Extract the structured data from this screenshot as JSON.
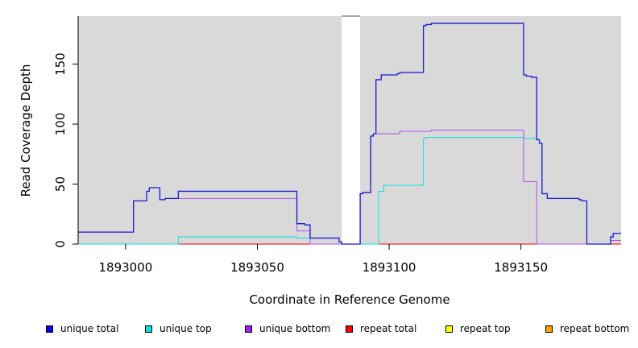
{
  "chart_data": {
    "type": "line",
    "xlabel": "Coordinate in Reference Genome",
    "ylabel": "Read Coverage Depth",
    "xlim": [
      1892982,
      1893188
    ],
    "ylim": [
      0,
      190
    ],
    "x_ticks": [
      1893000,
      1893050,
      1893100,
      1893150
    ],
    "y_ticks": [
      0,
      50,
      100,
      150
    ],
    "background_color": "#d9d9d9",
    "gap_region": [
      1893082,
      1893089
    ],
    "series": [
      {
        "name": "unique total",
        "color": "#1a1ad6",
        "points": [
          [
            1892982,
            10
          ],
          [
            1893003,
            10
          ],
          [
            1893003,
            36
          ],
          [
            1893008,
            36
          ],
          [
            1893008,
            44
          ],
          [
            1893009,
            44
          ],
          [
            1893009,
            47
          ],
          [
            1893013,
            47
          ],
          [
            1893013,
            37
          ],
          [
            1893015,
            37
          ],
          [
            1893015,
            38
          ],
          [
            1893020,
            38
          ],
          [
            1893020,
            44
          ],
          [
            1893065,
            44
          ],
          [
            1893065,
            17
          ],
          [
            1893068,
            17
          ],
          [
            1893068,
            16
          ],
          [
            1893070,
            16
          ],
          [
            1893070,
            5
          ],
          [
            1893081,
            5
          ],
          [
            1893081,
            2
          ],
          [
            1893082,
            2
          ],
          [
            1893082,
            0
          ],
          [
            1893089,
            0
          ],
          [
            1893089,
            42
          ],
          [
            1893090,
            42
          ],
          [
            1893090,
            43
          ],
          [
            1893093,
            43
          ],
          [
            1893093,
            90
          ],
          [
            1893094,
            90
          ],
          [
            1893094,
            92
          ],
          [
            1893095,
            92
          ],
          [
            1893095,
            137
          ],
          [
            1893097,
            137
          ],
          [
            1893097,
            141
          ],
          [
            1893103,
            141
          ],
          [
            1893103,
            142
          ],
          [
            1893104,
            142
          ],
          [
            1893104,
            143
          ],
          [
            1893113,
            143
          ],
          [
            1893113,
            182
          ],
          [
            1893114,
            182
          ],
          [
            1893114,
            183
          ],
          [
            1893116,
            183
          ],
          [
            1893116,
            184
          ],
          [
            1893151,
            184
          ],
          [
            1893151,
            141
          ],
          [
            1893152,
            141
          ],
          [
            1893152,
            140
          ],
          [
            1893154,
            140
          ],
          [
            1893154,
            139
          ],
          [
            1893156,
            139
          ],
          [
            1893156,
            87
          ],
          [
            1893157,
            87
          ],
          [
            1893157,
            84
          ],
          [
            1893158,
            84
          ],
          [
            1893158,
            42
          ],
          [
            1893160,
            42
          ],
          [
            1893160,
            38
          ],
          [
            1893172,
            38
          ],
          [
            1893172,
            37
          ],
          [
            1893173,
            37
          ],
          [
            1893173,
            36
          ],
          [
            1893175,
            36
          ],
          [
            1893175,
            0
          ],
          [
            1893184,
            0
          ],
          [
            1893184,
            6
          ],
          [
            1893185,
            6
          ],
          [
            1893185,
            9
          ],
          [
            1893188,
            9
          ]
        ]
      },
      {
        "name": "unique top",
        "color": "#00e5e5",
        "points": [
          [
            1892982,
            0
          ],
          [
            1893020,
            0
          ],
          [
            1893020,
            6
          ],
          [
            1893065,
            6
          ],
          [
            1893065,
            5
          ],
          [
            1893081,
            5
          ],
          [
            1893081,
            0
          ],
          [
            1893096,
            0
          ],
          [
            1893096,
            44
          ],
          [
            1893098,
            44
          ],
          [
            1893098,
            49
          ],
          [
            1893113,
            49
          ],
          [
            1893113,
            88
          ],
          [
            1893114,
            88
          ],
          [
            1893114,
            89
          ],
          [
            1893151,
            89
          ],
          [
            1893151,
            88
          ],
          [
            1893156,
            88
          ],
          [
            1893156,
            87
          ],
          [
            1893157,
            87
          ],
          [
            1893157,
            84
          ],
          [
            1893158,
            84
          ],
          [
            1893158,
            42
          ],
          [
            1893160,
            42
          ],
          [
            1893160,
            38
          ],
          [
            1893172,
            38
          ],
          [
            1893172,
            37
          ],
          [
            1893173,
            37
          ],
          [
            1893173,
            36
          ],
          [
            1893175,
            36
          ],
          [
            1893175,
            0
          ],
          [
            1893184,
            0
          ],
          [
            1893184,
            3
          ],
          [
            1893188,
            3
          ]
        ]
      },
      {
        "name": "unique bottom",
        "color": "#b050f0",
        "points": [
          [
            1892982,
            10
          ],
          [
            1893003,
            10
          ],
          [
            1893003,
            36
          ],
          [
            1893008,
            36
          ],
          [
            1893008,
            44
          ],
          [
            1893009,
            44
          ],
          [
            1893009,
            47
          ],
          [
            1893013,
            47
          ],
          [
            1893013,
            37
          ],
          [
            1893015,
            37
          ],
          [
            1893015,
            38
          ],
          [
            1893065,
            38
          ],
          [
            1893065,
            11
          ],
          [
            1893070,
            11
          ],
          [
            1893070,
            0
          ],
          [
            1893089,
            0
          ],
          [
            1893089,
            42
          ],
          [
            1893090,
            42
          ],
          [
            1893090,
            43
          ],
          [
            1893093,
            43
          ],
          [
            1893093,
            90
          ],
          [
            1893094,
            90
          ],
          [
            1893094,
            92
          ],
          [
            1893104,
            92
          ],
          [
            1893104,
            94
          ],
          [
            1893116,
            94
          ],
          [
            1893116,
            95
          ],
          [
            1893151,
            95
          ],
          [
            1893151,
            52
          ],
          [
            1893156,
            52
          ],
          [
            1893156,
            0
          ],
          [
            1893184,
            0
          ],
          [
            1893184,
            3
          ],
          [
            1893188,
            3
          ]
        ]
      },
      {
        "name": "repeat total",
        "color": "#ff0000",
        "points": [
          [
            1892982,
            0
          ],
          [
            1893188,
            0
          ]
        ]
      },
      {
        "name": "repeat top",
        "color": "#ffff00",
        "points": [
          [
            1892982,
            0
          ],
          [
            1893188,
            0
          ]
        ]
      },
      {
        "name": "repeat bottom",
        "color": "#ffa500",
        "points": [
          [
            1892982,
            0
          ],
          [
            1893082,
            0
          ],
          [
            1893089,
            0
          ],
          [
            1893188,
            0
          ]
        ]
      }
    ]
  },
  "legend": {
    "items": [
      {
        "label": "unique total",
        "color": "#0000ff"
      },
      {
        "label": "unique top",
        "color": "#00e5e5"
      },
      {
        "label": "unique bottom",
        "color": "#a020f0"
      },
      {
        "label": "repeat total",
        "color": "#ff0000"
      },
      {
        "label": "repeat top",
        "color": "#ffff00"
      },
      {
        "label": "repeat bottom",
        "color": "#ffa500"
      }
    ]
  }
}
